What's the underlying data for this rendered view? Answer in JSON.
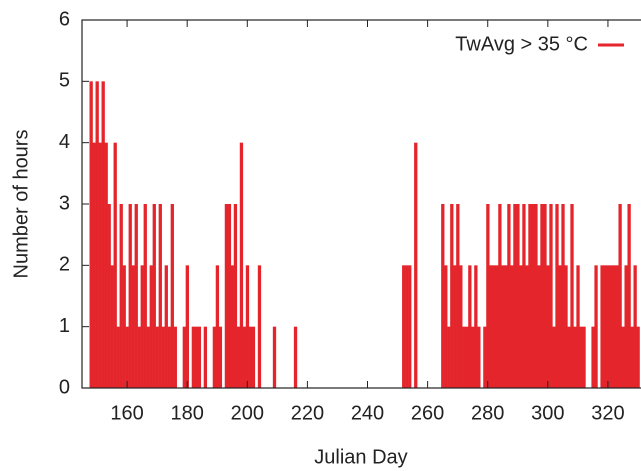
{
  "chart_data": {
    "type": "bar",
    "x_label": "Julian Day",
    "y_label": "Number of hours",
    "xlim": [
      145,
      331
    ],
    "xticks": [
      160,
      180,
      200,
      220,
      240,
      260,
      280,
      300,
      320
    ],
    "ylim": [
      0,
      6
    ],
    "yticks": [
      0,
      1,
      2,
      3,
      4,
      5,
      6
    ],
    "legend": "top-right",
    "series": [
      {
        "name": "TwAvg > 35 °C",
        "color": "#e4262c",
        "x": [
          148,
          149,
          150,
          151,
          152,
          153,
          154,
          155,
          156,
          157,
          158,
          159,
          160,
          161,
          162,
          163,
          164,
          165,
          166,
          167,
          168,
          169,
          170,
          171,
          172,
          173,
          174,
          175,
          176,
          179,
          180,
          182,
          183,
          184,
          186,
          189,
          190,
          191,
          193,
          194,
          195,
          196,
          197,
          198,
          199,
          200,
          201,
          202,
          204,
          209,
          216,
          252,
          253,
          254,
          256,
          265,
          266,
          267,
          268,
          269,
          270,
          271,
          272,
          273,
          274,
          275,
          276,
          277,
          279,
          280,
          281,
          282,
          283,
          284,
          285,
          286,
          287,
          288,
          289,
          290,
          291,
          292,
          293,
          294,
          295,
          296,
          297,
          298,
          299,
          300,
          301,
          302,
          303,
          304,
          305,
          306,
          307,
          308,
          309,
          310,
          311,
          312,
          315,
          316,
          318,
          319,
          320,
          321,
          322,
          323,
          324,
          325,
          326,
          327,
          328,
          329,
          330
        ],
        "values": [
          5,
          4,
          5,
          4,
          5,
          4,
          3,
          2,
          4,
          1,
          3,
          2,
          1,
          3,
          2,
          3,
          1,
          2,
          3,
          1,
          2,
          3,
          1,
          3,
          1,
          2,
          1,
          3,
          1,
          1,
          2,
          1,
          1,
          1,
          1,
          1,
          2,
          1,
          3,
          3,
          2,
          3,
          1,
          4,
          1,
          2,
          1,
          1,
          2,
          1,
          1,
          2,
          2,
          2,
          4,
          3,
          2,
          1,
          3,
          2,
          3,
          2,
          1,
          1,
          2,
          1,
          2,
          1,
          1,
          3,
          2,
          2,
          2,
          3,
          2,
          2,
          3,
          2,
          3,
          3,
          2,
          3,
          2,
          3,
          3,
          3,
          2,
          3,
          3,
          2,
          3,
          1,
          3,
          2,
          3,
          2,
          1,
          3,
          1,
          2,
          1,
          1,
          1,
          2,
          2,
          2,
          2,
          2,
          2,
          2,
          3,
          1,
          2,
          3,
          1,
          2,
          1
        ]
      }
    ]
  }
}
